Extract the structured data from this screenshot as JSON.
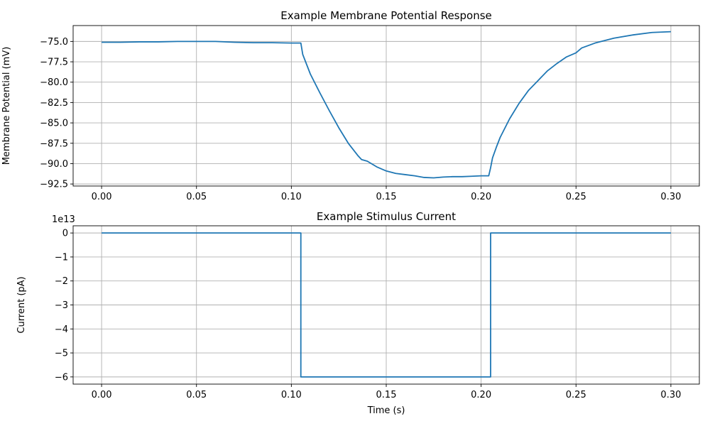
{
  "chart_data": [
    {
      "type": "line",
      "title": "Example Membrane Potential Response",
      "xlabel": "",
      "ylabel": "Membrane Potential (mV)",
      "xlim": [
        -0.015,
        0.315
      ],
      "ylim": [
        -92.75,
        -73.05
      ],
      "xticks": [
        0.0,
        0.05,
        0.1,
        0.15,
        0.2,
        0.25,
        0.3
      ],
      "xtick_labels": [
        "0.00",
        "0.05",
        "0.10",
        "0.15",
        "0.20",
        "0.25",
        "0.30"
      ],
      "yticks": [
        -75.0,
        -77.5,
        -80.0,
        -82.5,
        -85.0,
        -87.5,
        -90.0,
        -92.5
      ],
      "ytick_labels": [
        "−75.0",
        "−77.5",
        "−80.0",
        "−82.5",
        "−85.0",
        "−87.5",
        "−90.0",
        "−92.5"
      ],
      "grid": true,
      "color": "#1f77b4",
      "series": [
        {
          "x": [
            0.0,
            0.01,
            0.02,
            0.03,
            0.04,
            0.05,
            0.06,
            0.07,
            0.08,
            0.09,
            0.1,
            0.105,
            0.106,
            0.108,
            0.11,
            0.115,
            0.12,
            0.125,
            0.13,
            0.135,
            0.137,
            0.14,
            0.145,
            0.15,
            0.155,
            0.16,
            0.165,
            0.17,
            0.175,
            0.18,
            0.185,
            0.19,
            0.195,
            0.2,
            0.204,
            0.205,
            0.206,
            0.208,
            0.21,
            0.215,
            0.22,
            0.225,
            0.23,
            0.235,
            0.24,
            0.245,
            0.25,
            0.253,
            0.26,
            0.27,
            0.28,
            0.29,
            0.3
          ],
          "y": [
            -75.1,
            -75.1,
            -75.05,
            -75.05,
            -75.0,
            -75.0,
            -75.0,
            -75.1,
            -75.15,
            -75.15,
            -75.2,
            -75.2,
            -76.6,
            -77.8,
            -79.0,
            -81.3,
            -83.5,
            -85.6,
            -87.5,
            -89.0,
            -89.5,
            -89.7,
            -90.4,
            -90.9,
            -91.2,
            -91.35,
            -91.5,
            -91.7,
            -91.75,
            -91.65,
            -91.6,
            -91.6,
            -91.55,
            -91.5,
            -91.5,
            -90.5,
            -89.3,
            -88.0,
            -86.8,
            -84.5,
            -82.6,
            -81.0,
            -79.8,
            -78.6,
            -77.7,
            -76.9,
            -76.4,
            -75.8,
            -75.2,
            -74.6,
            -74.2,
            -73.9,
            -73.8
          ]
        }
      ]
    },
    {
      "type": "line",
      "title": "Example Stimulus Current",
      "xlabel": "Time (s)",
      "ylabel": "Current (pA)",
      "offset_label": "1e13",
      "xlim": [
        -0.015,
        0.315
      ],
      "ylim": [
        -6.3,
        0.3
      ],
      "xticks": [
        0.0,
        0.05,
        0.1,
        0.15,
        0.2,
        0.25,
        0.3
      ],
      "xtick_labels": [
        "0.00",
        "0.05",
        "0.10",
        "0.15",
        "0.20",
        "0.25",
        "0.30"
      ],
      "yticks": [
        0,
        -1,
        -2,
        -3,
        -4,
        -5,
        -6
      ],
      "ytick_labels": [
        "0",
        "−1",
        "−2",
        "−3",
        "−4",
        "−5",
        "−6"
      ],
      "grid": true,
      "color": "#1f77b4",
      "series": [
        {
          "x": [
            0.0,
            0.105,
            0.105,
            0.205,
            0.205,
            0.3
          ],
          "y": [
            0,
            0,
            -6,
            -6,
            0,
            0
          ]
        }
      ]
    }
  ]
}
